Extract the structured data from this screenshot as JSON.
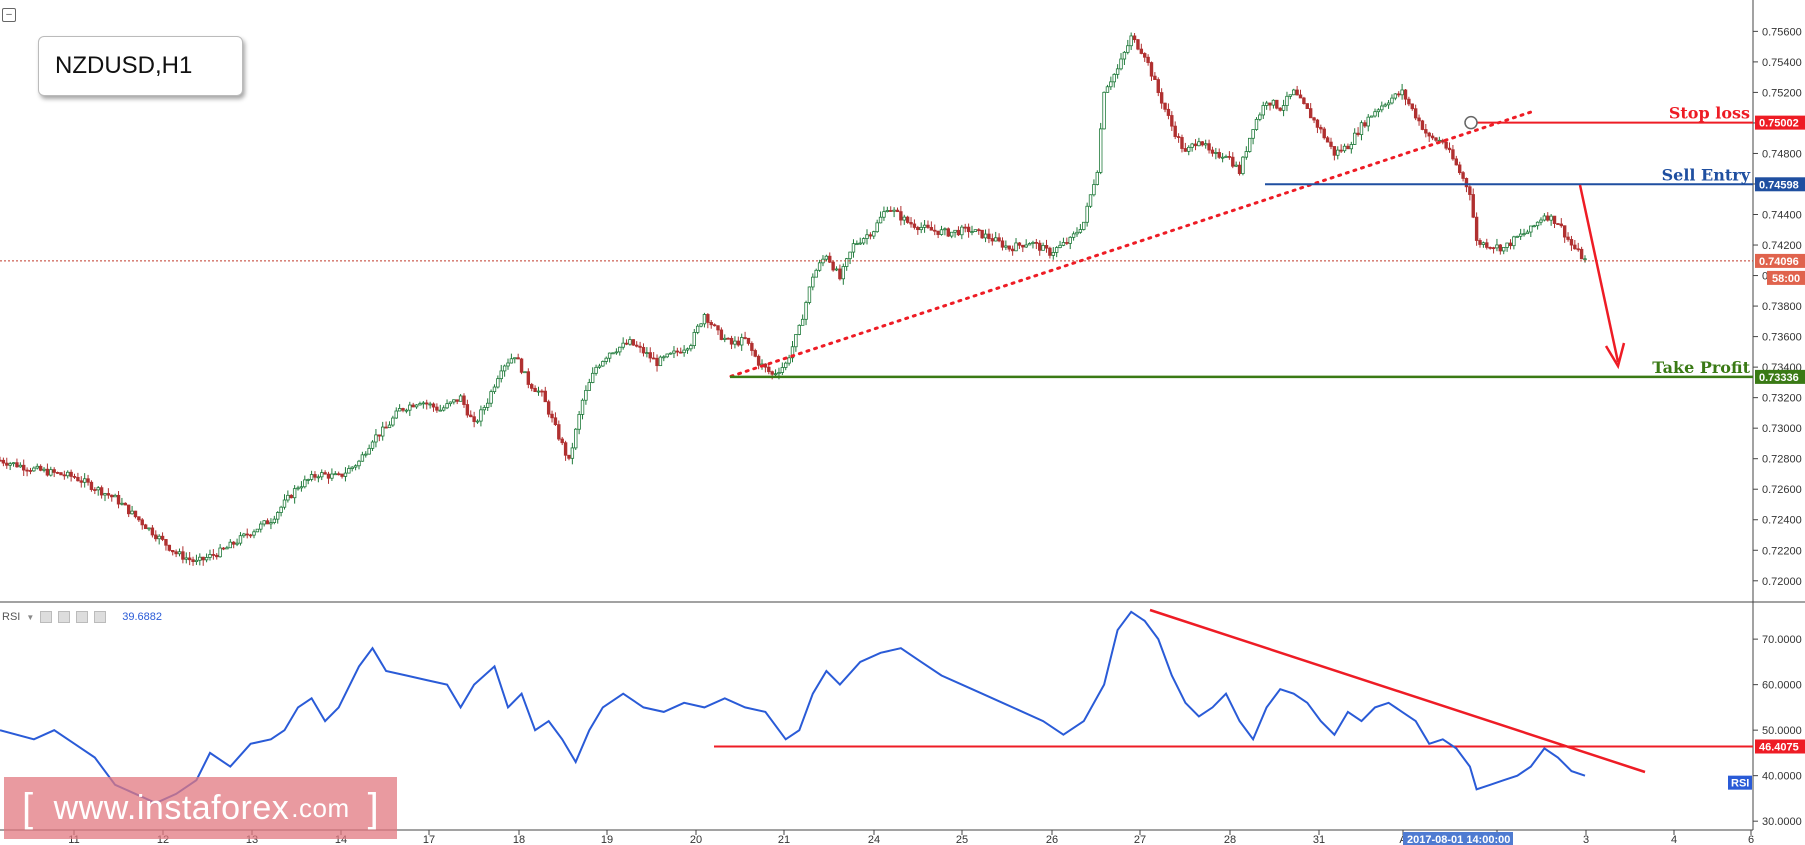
{
  "symbol": "NZDUSD,H1",
  "rsi_header": {
    "label": "RSI",
    "value": "39.6882"
  },
  "watermark": {
    "left": "[",
    "domain": "www.instaforex",
    "tld": ".com",
    "right": "]"
  },
  "colors": {
    "bull": "#1f7a3a",
    "bear": "#b03030",
    "stop": "#ee1c25",
    "entry": "#1f4fa0",
    "tp": "#3a7a15",
    "rsi_line": "#2a5bd7",
    "trend": "#ee1c25"
  },
  "chart_data": [
    {
      "type": "candlestick",
      "title": "NZDUSD,H1",
      "y_ticks": [
        "0.75600",
        "0.75400",
        "0.75200",
        "0.75000",
        "0.74800",
        "0.74600",
        "0.74400",
        "0.74200",
        "0.74000",
        "0.73800",
        "0.73600",
        "0.73400",
        "0.73200",
        "0.73000",
        "0.72800",
        "0.72600",
        "0.72400",
        "0.72200",
        "0.72000"
      ],
      "ylim": [
        0.7192,
        0.7574
      ],
      "x_ticks": [
        "11",
        "12",
        "13",
        "14",
        "17",
        "18",
        "19",
        "20",
        "21",
        "24",
        "25",
        "26",
        "27",
        "28",
        "31",
        "A",
        "2",
        "3",
        "4",
        "6"
      ],
      "x_highlight": "2017-08-01 14:00:00",
      "close_path": [
        [
          0,
          0.7279
        ],
        [
          10,
          0.7273
        ],
        [
          22,
          0.7268
        ],
        [
          34,
          0.7254
        ],
        [
          44,
          0.7234
        ],
        [
          52,
          0.7218
        ],
        [
          58,
          0.7212
        ],
        [
          66,
          0.722
        ],
        [
          74,
          0.7232
        ],
        [
          80,
          0.724
        ],
        [
          88,
          0.7262
        ],
        [
          94,
          0.727
        ],
        [
          100,
          0.7268
        ],
        [
          106,
          0.7278
        ],
        [
          110,
          0.7293
        ],
        [
          114,
          0.73
        ],
        [
          118,
          0.7312
        ],
        [
          124,
          0.7318
        ],
        [
          130,
          0.7312
        ],
        [
          136,
          0.732
        ],
        [
          140,
          0.7302
        ],
        [
          144,
          0.7318
        ],
        [
          148,
          0.734
        ],
        [
          152,
          0.7348
        ],
        [
          156,
          0.733
        ],
        [
          160,
          0.7322
        ],
        [
          164,
          0.73
        ],
        [
          168,
          0.7278
        ],
        [
          172,
          0.7318
        ],
        [
          176,
          0.734
        ],
        [
          180,
          0.735
        ],
        [
          186,
          0.7356
        ],
        [
          190,
          0.735
        ],
        [
          194,
          0.7343
        ],
        [
          200,
          0.735
        ],
        [
          204,
          0.7356
        ],
        [
          208,
          0.7375
        ],
        [
          212,
          0.7362
        ],
        [
          216,
          0.7355
        ],
        [
          220,
          0.7358
        ],
        [
          224,
          0.7343
        ],
        [
          228,
          0.7335
        ],
        [
          232,
          0.7342
        ],
        [
          236,
          0.7365
        ],
        [
          240,
          0.74
        ],
        [
          244,
          0.7414
        ],
        [
          248,
          0.7398
        ],
        [
          252,
          0.742
        ],
        [
          258,
          0.743
        ],
        [
          262,
          0.7445
        ],
        [
          268,
          0.7435
        ],
        [
          274,
          0.743
        ],
        [
          280,
          0.7428
        ],
        [
          286,
          0.743
        ],
        [
          292,
          0.7425
        ],
        [
          298,
          0.7418
        ],
        [
          304,
          0.7422
        ],
        [
          310,
          0.7415
        ],
        [
          316,
          0.7423
        ],
        [
          320,
          0.7435
        ],
        [
          324,
          0.747
        ],
        [
          326,
          0.7522
        ],
        [
          330,
          0.7535
        ],
        [
          334,
          0.7556
        ],
        [
          338,
          0.7545
        ],
        [
          342,
          0.752
        ],
        [
          346,
          0.7498
        ],
        [
          350,
          0.748
        ],
        [
          354,
          0.749
        ],
        [
          358,
          0.7478
        ],
        [
          362,
          0.748
        ],
        [
          366,
          0.7468
        ],
        [
          370,
          0.7498
        ],
        [
          374,
          0.7515
        ],
        [
          378,
          0.751
        ],
        [
          382,
          0.752
        ],
        [
          386,
          0.7508
        ],
        [
          390,
          0.7495
        ],
        [
          394,
          0.748
        ],
        [
          398,
          0.7485
        ],
        [
          402,
          0.7498
        ],
        [
          406,
          0.7508
        ],
        [
          410,
          0.7515
        ],
        [
          414,
          0.752
        ],
        [
          418,
          0.7505
        ],
        [
          422,
          0.749
        ],
        [
          426,
          0.7488
        ],
        [
          430,
          0.7472
        ],
        [
          434,
          0.7455
        ],
        [
          436,
          0.7422
        ],
        [
          440,
          0.742
        ],
        [
          444,
          0.7418
        ],
        [
          448,
          0.7425
        ],
        [
          452,
          0.743
        ],
        [
          456,
          0.744
        ],
        [
          460,
          0.7435
        ],
        [
          464,
          0.742
        ],
        [
          468,
          0.741
        ]
      ],
      "lines": [
        {
          "label": "Stop loss",
          "value": 0.75002,
          "price_tag": "0.75002"
        },
        {
          "label": "Sell Entry",
          "value": 0.74598,
          "price_tag": "0.74598"
        },
        {
          "label": "Take Profit",
          "value": 0.73336,
          "price_tag": "0.73336"
        }
      ],
      "current_price": {
        "value": 0.74096,
        "price_tag": "0.74096",
        "countdown": "58:00"
      },
      "trendline": {
        "from": [
          0.7334
        ],
        "to": [
          0.7508
        ],
        "style": "dotted"
      },
      "arrow": "down"
    },
    {
      "type": "line",
      "title": "RSI",
      "y_ticks": [
        "70.0000",
        "60.0000",
        "50.0000",
        "40.0000",
        "30.0000"
      ],
      "ylim": [
        28.5,
        77.5
      ],
      "level": {
        "value": 46.4075,
        "price_tag": "46.4075"
      },
      "series_tag": "RSI",
      "values": [
        [
          0,
          50
        ],
        [
          10,
          48
        ],
        [
          16,
          50
        ],
        [
          22,
          47
        ],
        [
          28,
          44
        ],
        [
          34,
          38
        ],
        [
          40,
          36
        ],
        [
          46,
          34
        ],
        [
          52,
          36
        ],
        [
          58,
          39
        ],
        [
          62,
          45
        ],
        [
          68,
          42
        ],
        [
          74,
          47
        ],
        [
          80,
          48
        ],
        [
          84,
          50
        ],
        [
          88,
          55
        ],
        [
          92,
          57
        ],
        [
          96,
          52
        ],
        [
          100,
          55
        ],
        [
          106,
          64
        ],
        [
          110,
          68
        ],
        [
          114,
          63
        ],
        [
          120,
          62
        ],
        [
          126,
          61
        ],
        [
          132,
          60
        ],
        [
          136,
          55
        ],
        [
          140,
          60
        ],
        [
          146,
          64
        ],
        [
          150,
          55
        ],
        [
          154,
          58
        ],
        [
          158,
          50
        ],
        [
          162,
          52
        ],
        [
          166,
          48
        ],
        [
          170,
          43
        ],
        [
          174,
          50
        ],
        [
          178,
          55
        ],
        [
          184,
          58
        ],
        [
          190,
          55
        ],
        [
          196,
          54
        ],
        [
          202,
          56
        ],
        [
          208,
          55
        ],
        [
          214,
          57
        ],
        [
          220,
          55
        ],
        [
          226,
          54
        ],
        [
          232,
          48
        ],
        [
          236,
          50
        ],
        [
          240,
          58
        ],
        [
          244,
          63
        ],
        [
          248,
          60
        ],
        [
          254,
          65
        ],
        [
          260,
          67
        ],
        [
          266,
          68
        ],
        [
          272,
          65
        ],
        [
          278,
          62
        ],
        [
          284,
          60
        ],
        [
          290,
          58
        ],
        [
          296,
          56
        ],
        [
          302,
          54
        ],
        [
          308,
          52
        ],
        [
          314,
          49
        ],
        [
          320,
          52
        ],
        [
          326,
          60
        ],
        [
          330,
          72
        ],
        [
          334,
          76
        ],
        [
          338,
          74
        ],
        [
          342,
          70
        ],
        [
          346,
          62
        ],
        [
          350,
          56
        ],
        [
          354,
          53
        ],
        [
          358,
          55
        ],
        [
          362,
          58
        ],
        [
          366,
          52
        ],
        [
          370,
          48
        ],
        [
          374,
          55
        ],
        [
          378,
          59
        ],
        [
          382,
          58
        ],
        [
          386,
          56
        ],
        [
          390,
          52
        ],
        [
          394,
          49
        ],
        [
          398,
          54
        ],
        [
          402,
          52
        ],
        [
          406,
          55
        ],
        [
          410,
          56
        ],
        [
          414,
          54
        ],
        [
          418,
          52
        ],
        [
          422,
          47
        ],
        [
          426,
          48
        ],
        [
          430,
          46
        ],
        [
          434,
          42
        ],
        [
          436,
          37
        ],
        [
          440,
          38
        ],
        [
          444,
          39
        ],
        [
          448,
          40
        ],
        [
          452,
          42
        ],
        [
          456,
          46
        ],
        [
          460,
          44
        ],
        [
          464,
          41
        ],
        [
          468,
          40
        ]
      ]
    }
  ]
}
